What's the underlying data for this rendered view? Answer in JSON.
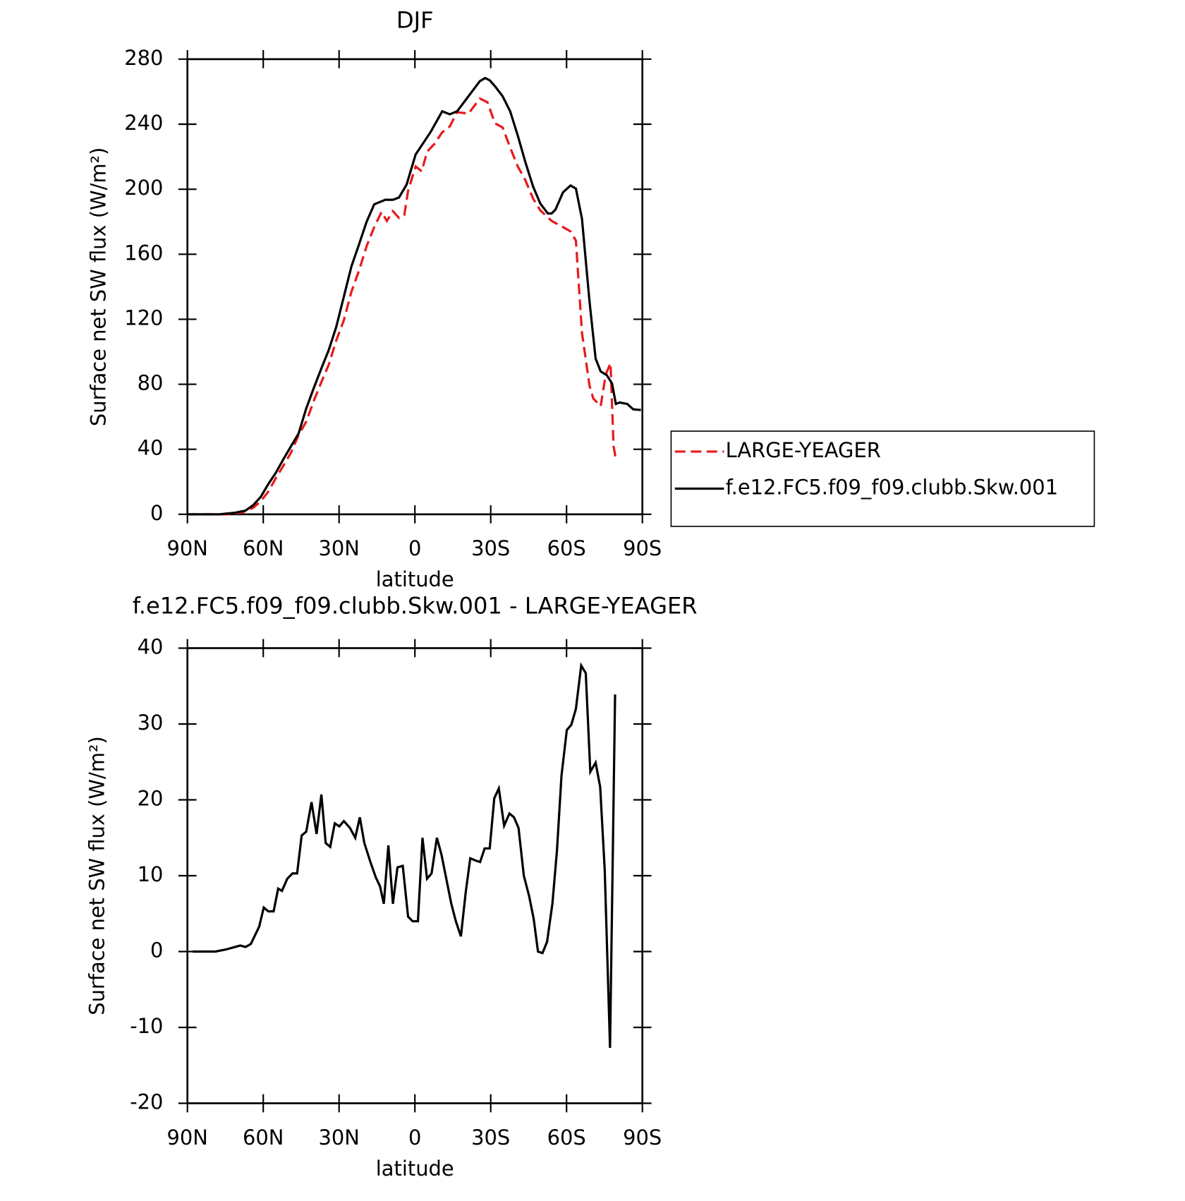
{
  "chart_data": [
    {
      "type": "line",
      "title": "DJF",
      "xlabel": "latitude",
      "ylabel": "Surface net SW flux (W/m²)",
      "xlim": [
        90,
        -90
      ],
      "xticks": [
        {
          "value": 90,
          "label": "90N"
        },
        {
          "value": 60,
          "label": "60N"
        },
        {
          "value": 30,
          "label": "30N"
        },
        0,
        {
          "value": -30,
          "label": "30S"
        },
        {
          "value": -60,
          "label": "60S"
        },
        {
          "value": -90,
          "label": "90S"
        }
      ],
      "ylim": [
        0,
        280
      ],
      "yticks": [
        0,
        40,
        80,
        120,
        160,
        200,
        240,
        280
      ],
      "legend": "right",
      "series": [
        {
          "name": "LARGE-YEAGER",
          "color": "#e8191b",
          "line_style": "dashed",
          "x": [
            90,
            74.5,
            68.5,
            64,
            61,
            58,
            55,
            52,
            49,
            46,
            43,
            40,
            37,
            34.1,
            31.1,
            28.1,
            25.1,
            22.1,
            19.1,
            16.1,
            13.2,
            11.1,
            8.7,
            6.3,
            4.2,
            2.7,
            -0.3,
            -2.7,
            -4.8,
            -7.8,
            -10.8,
            -13.8,
            -16.7,
            -21.2,
            -25.7,
            -28.7,
            -31.7,
            -34.7,
            -37.7,
            -40.7,
            -43.7,
            -46.7,
            -49.6,
            -54.1,
            -58.6,
            -61.6,
            -63.7,
            -66.1,
            -69.1,
            -70.6,
            -73.5,
            -75.5,
            -77.4,
            -78.6,
            -79.5
          ],
          "values": [
            0,
            0,
            1,
            4,
            8,
            14,
            22.3,
            30,
            38,
            48.8,
            57,
            69.8,
            81.4,
            92,
            107,
            119.5,
            137,
            150,
            165,
            176.7,
            186,
            180.5,
            186.5,
            182.3,
            184,
            199,
            214,
            211,
            223,
            228,
            235,
            238.6,
            247.4,
            246.5,
            255.8,
            253.5,
            240.5,
            238,
            225.6,
            214,
            205.6,
            194.4,
            187,
            180.5,
            176.7,
            174,
            168.4,
            111.6,
            79,
            71.2,
            66.5,
            86,
            93,
            41.9,
            34
          ]
        },
        {
          "name": "f.e12.FC5.f09_f09.clubb.Skw.001",
          "color": "#000000",
          "line_style": "solid",
          "x": [
            90,
            77.4,
            71.5,
            67,
            64,
            61,
            58,
            55,
            52,
            49,
            46,
            43,
            40,
            37,
            34.1,
            31.1,
            28.1,
            25.1,
            22.1,
            19.1,
            16.1,
            11.7,
            8.7,
            6.3,
            3.3,
            -0.3,
            -3.3,
            -6.3,
            -10.8,
            -13.8,
            -16.7,
            -21.2,
            -25.7,
            -27.8,
            -29.6,
            -31.7,
            -34.7,
            -37.7,
            -40.7,
            -43.7,
            -46.7,
            -49.6,
            -52.6,
            -54.1,
            -55.6,
            -58.6,
            -61.6,
            -63.7,
            -66.1,
            -69.1,
            -71.5,
            -73.5,
            -75.9,
            -78,
            -79.5,
            -81,
            -84,
            -86.4,
            -89.4
          ],
          "values": [
            0,
            0,
            0.9,
            2.3,
            5.6,
            10.7,
            18.6,
            25.6,
            34,
            41.9,
            49.8,
            65.1,
            77.7,
            89.8,
            101,
            115.4,
            134,
            152.6,
            166.1,
            180,
            190.7,
            193.5,
            193.5,
            194.9,
            202.8,
            221.4,
            228.4,
            235.4,
            247.9,
            246.1,
            247.9,
            257.2,
            266.5,
            268.4,
            267,
            263.3,
            257.2,
            247.9,
            233,
            216.7,
            201.9,
            191.2,
            185.1,
            185.1,
            187.4,
            198.1,
            202.3,
            200.4,
            181.8,
            130.7,
            95.8,
            87.9,
            85.6,
            80.5,
            67.9,
            68.8,
            67.9,
            64.6,
            64.2
          ]
        }
      ]
    },
    {
      "type": "line",
      "title": "f.e12.FC5.f09_f09.clubb.Skw.001 - LARGE-YEAGER",
      "xlabel": "latitude",
      "ylabel": "Surface net SW flux (W/m²)",
      "xlim": [
        90,
        -90
      ],
      "xticks": [
        {
          "value": 90,
          "label": "90N"
        },
        {
          "value": 60,
          "label": "60N"
        },
        {
          "value": 30,
          "label": "30N"
        },
        0,
        {
          "value": -30,
          "label": "30S"
        },
        {
          "value": -60,
          "label": "60S"
        },
        {
          "value": -90,
          "label": "90S"
        }
      ],
      "ylim": [
        -20,
        40
      ],
      "yticks": [
        -20,
        -10,
        0,
        10,
        20,
        30,
        40
      ],
      "series": [
        {
          "color": "#000000",
          "line_style": "solid",
          "x": [
            87.9,
            78.9,
            74.5,
            69.1,
            67,
            64.9,
            61.6,
            59.8,
            58,
            55.9,
            54.1,
            52.6,
            50.5,
            48.4,
            46.6,
            44.8,
            43,
            40.9,
            38.9,
            37,
            35.3,
            33.5,
            31.7,
            29.9,
            28.1,
            25.7,
            23.6,
            21.8,
            20,
            17.6,
            15.5,
            13.8,
            12.3,
            10.5,
            8.7,
            6.9,
            4.8,
            2.7,
            0.9,
            -1.2,
            -3,
            -4.8,
            -6.6,
            -8.7,
            -10.5,
            -12.3,
            -14.4,
            -16.2,
            -18.2,
            -20.1,
            -21.9,
            -24,
            -25.8,
            -27.6,
            -29.6,
            -31.4,
            -33.2,
            -35.3,
            -37.4,
            -39.2,
            -41,
            -43.1,
            -45.2,
            -47,
            -48.7,
            -50.5,
            -52.3,
            -54.4,
            -56.2,
            -58,
            -60.1,
            -61.9,
            -63.7,
            -65.8,
            -67.6,
            -69.4,
            -71.5,
            -73.3,
            -75.1,
            -77.2,
            -79.2
          ],
          "values": [
            0,
            0,
            0.3,
            0.8,
            0.6,
            1,
            3.3,
            5.8,
            5.3,
            5.3,
            8.3,
            8,
            9.6,
            10.3,
            10.3,
            15.3,
            15.8,
            19.7,
            15.5,
            20.7,
            14.3,
            13.8,
            16.9,
            16.5,
            17.2,
            16.3,
            15,
            17.7,
            14.3,
            11.8,
            9.8,
            8.6,
            6.3,
            14,
            6.3,
            11.1,
            11.3,
            4.6,
            4,
            4,
            15,
            9.6,
            10.3,
            15,
            12.8,
            9.8,
            6.3,
            4,
            2,
            7.8,
            12.3,
            12,
            11.8,
            13.6,
            13.6,
            20.2,
            21.5,
            16.6,
            18.2,
            17.7,
            16.3,
            10,
            7.3,
            4.3,
            0,
            -0.2,
            1.3,
            6.3,
            13.3,
            23.2,
            29.2,
            29.9,
            32,
            37.7,
            36.7,
            23.7,
            24.9,
            21.7,
            10.8,
            -12.7,
            33.9
          ]
        }
      ]
    }
  ]
}
